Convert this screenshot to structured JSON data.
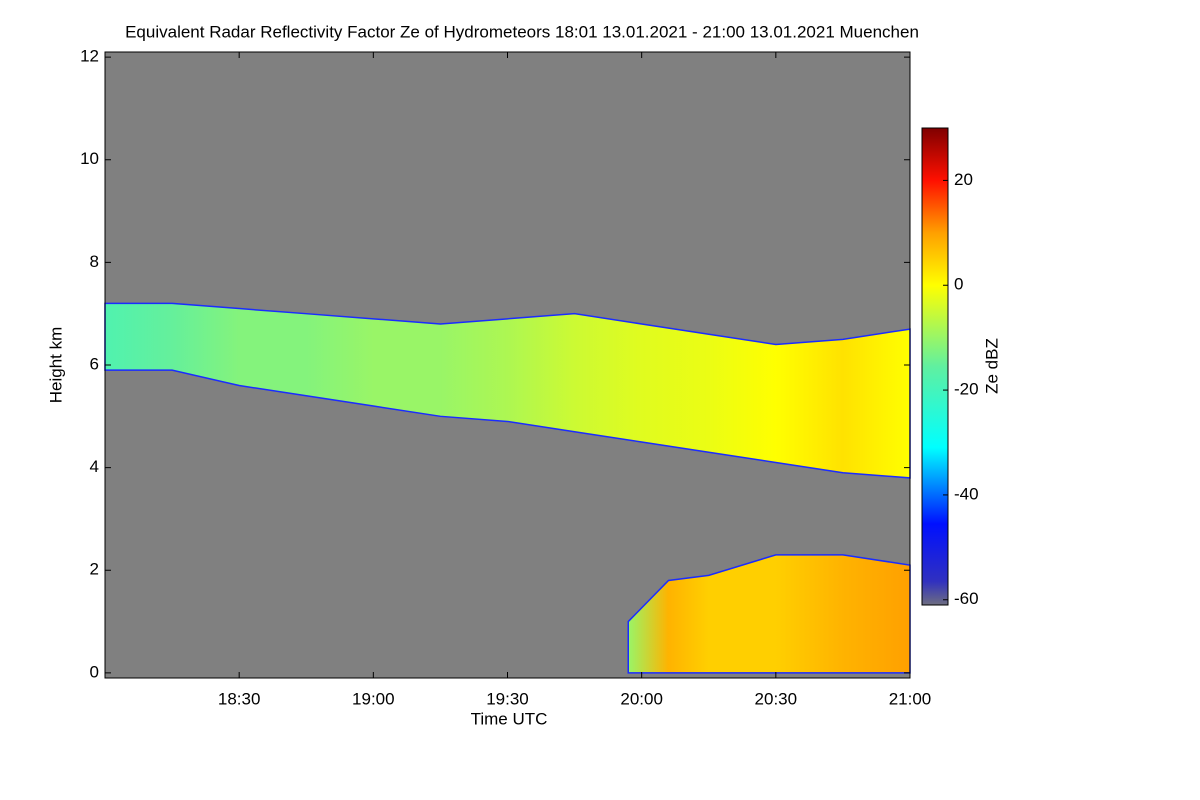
{
  "chart_data": {
    "type": "heatmap",
    "title": "Equivalent Radar Reflectivity Factor Ze of Hydrometeors   18:01 13.01.2021 - 21:00 13.01.2021 Muenchen",
    "xlabel": "Time UTC",
    "ylabel": "Height km",
    "colorbar_label": "Ze dBZ",
    "xlim": [
      18.0,
      21.0
    ],
    "xticks": [
      {
        "value": 18.5,
        "label": "18:30"
      },
      {
        "value": 19.0,
        "label": "19:00"
      },
      {
        "value": 19.5,
        "label": "19:30"
      },
      {
        "value": 20.0,
        "label": "20:00"
      },
      {
        "value": 20.5,
        "label": "20:30"
      },
      {
        "value": 21.0,
        "label": "21:00"
      }
    ],
    "ylim": [
      -0.1,
      12.1
    ],
    "yticks": [
      0,
      2,
      4,
      6,
      8,
      10,
      12
    ],
    "clim": [
      -61,
      30
    ],
    "cticks": [
      -60,
      -40,
      -20,
      0,
      20
    ],
    "background": "#808080",
    "layers": [
      {
        "x": [
          18.0,
          18.25,
          18.5,
          18.75,
          19.0,
          19.25,
          19.5,
          19.75,
          20.0,
          20.25,
          20.5,
          20.75,
          21.0
        ],
        "top": [
          7.2,
          7.2,
          7.1,
          7.0,
          6.9,
          6.8,
          6.9,
          7.0,
          6.8,
          6.6,
          6.4,
          6.5,
          6.7
        ],
        "base": [
          5.9,
          5.9,
          5.6,
          5.4,
          5.2,
          5.0,
          4.9,
          4.7,
          4.5,
          4.3,
          4.1,
          3.9,
          3.8
        ],
        "ze": [
          -18,
          -15,
          -12,
          -12,
          -10,
          -10,
          -8,
          -5,
          -3,
          -2,
          0,
          3,
          0
        ]
      },
      {
        "x": [
          19.95,
          20.1,
          20.25,
          20.5,
          20.75,
          21.0
        ],
        "top": [
          1.0,
          1.8,
          1.9,
          2.3,
          2.3,
          2.1
        ],
        "base": [
          0,
          0,
          0,
          0,
          0,
          0
        ],
        "ze": [
          -10,
          8,
          5,
          5,
          8,
          10
        ]
      }
    ]
  }
}
